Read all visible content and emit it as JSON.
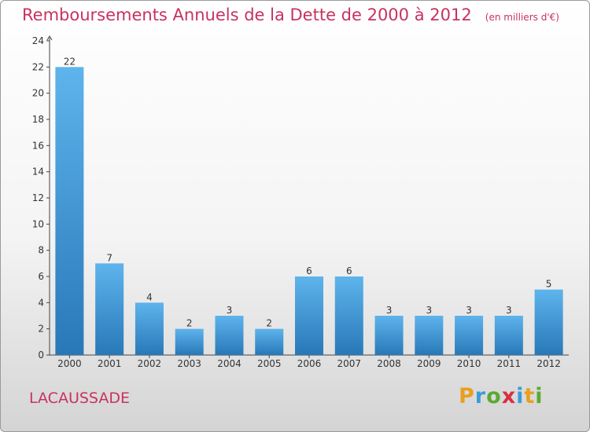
{
  "header": {
    "title": "Remboursements Annuels de la Dette de 2000 à 2012",
    "unit_note": "(en milliers d'€)"
  },
  "commune": "LACAUSSADE",
  "brand": "Proxiti",
  "colors": {
    "title": "#c8325e",
    "bar_light": "#5eb4ec",
    "bar_dark": "#2878b8"
  },
  "chart_data": {
    "type": "bar",
    "title": "Remboursements Annuels de la Dette de 2000 à 2012",
    "xlabel": "",
    "ylabel": "",
    "categories": [
      "2000",
      "2001",
      "2002",
      "2003",
      "2004",
      "2005",
      "2006",
      "2007",
      "2008",
      "2009",
      "2010",
      "2011",
      "2012"
    ],
    "values": [
      22,
      7,
      4,
      2,
      3,
      2,
      6,
      6,
      3,
      3,
      3,
      3,
      5
    ],
    "ylim": [
      0,
      24
    ],
    "yticks": [
      0,
      2,
      4,
      6,
      8,
      10,
      12,
      14,
      16,
      18,
      20,
      22,
      24
    ],
    "data_labels": [
      "22",
      "7",
      "4",
      "2",
      "3",
      "2",
      "6",
      "6",
      "3",
      "3",
      "3",
      "3",
      "5"
    ],
    "grid": false,
    "legend": "none"
  }
}
